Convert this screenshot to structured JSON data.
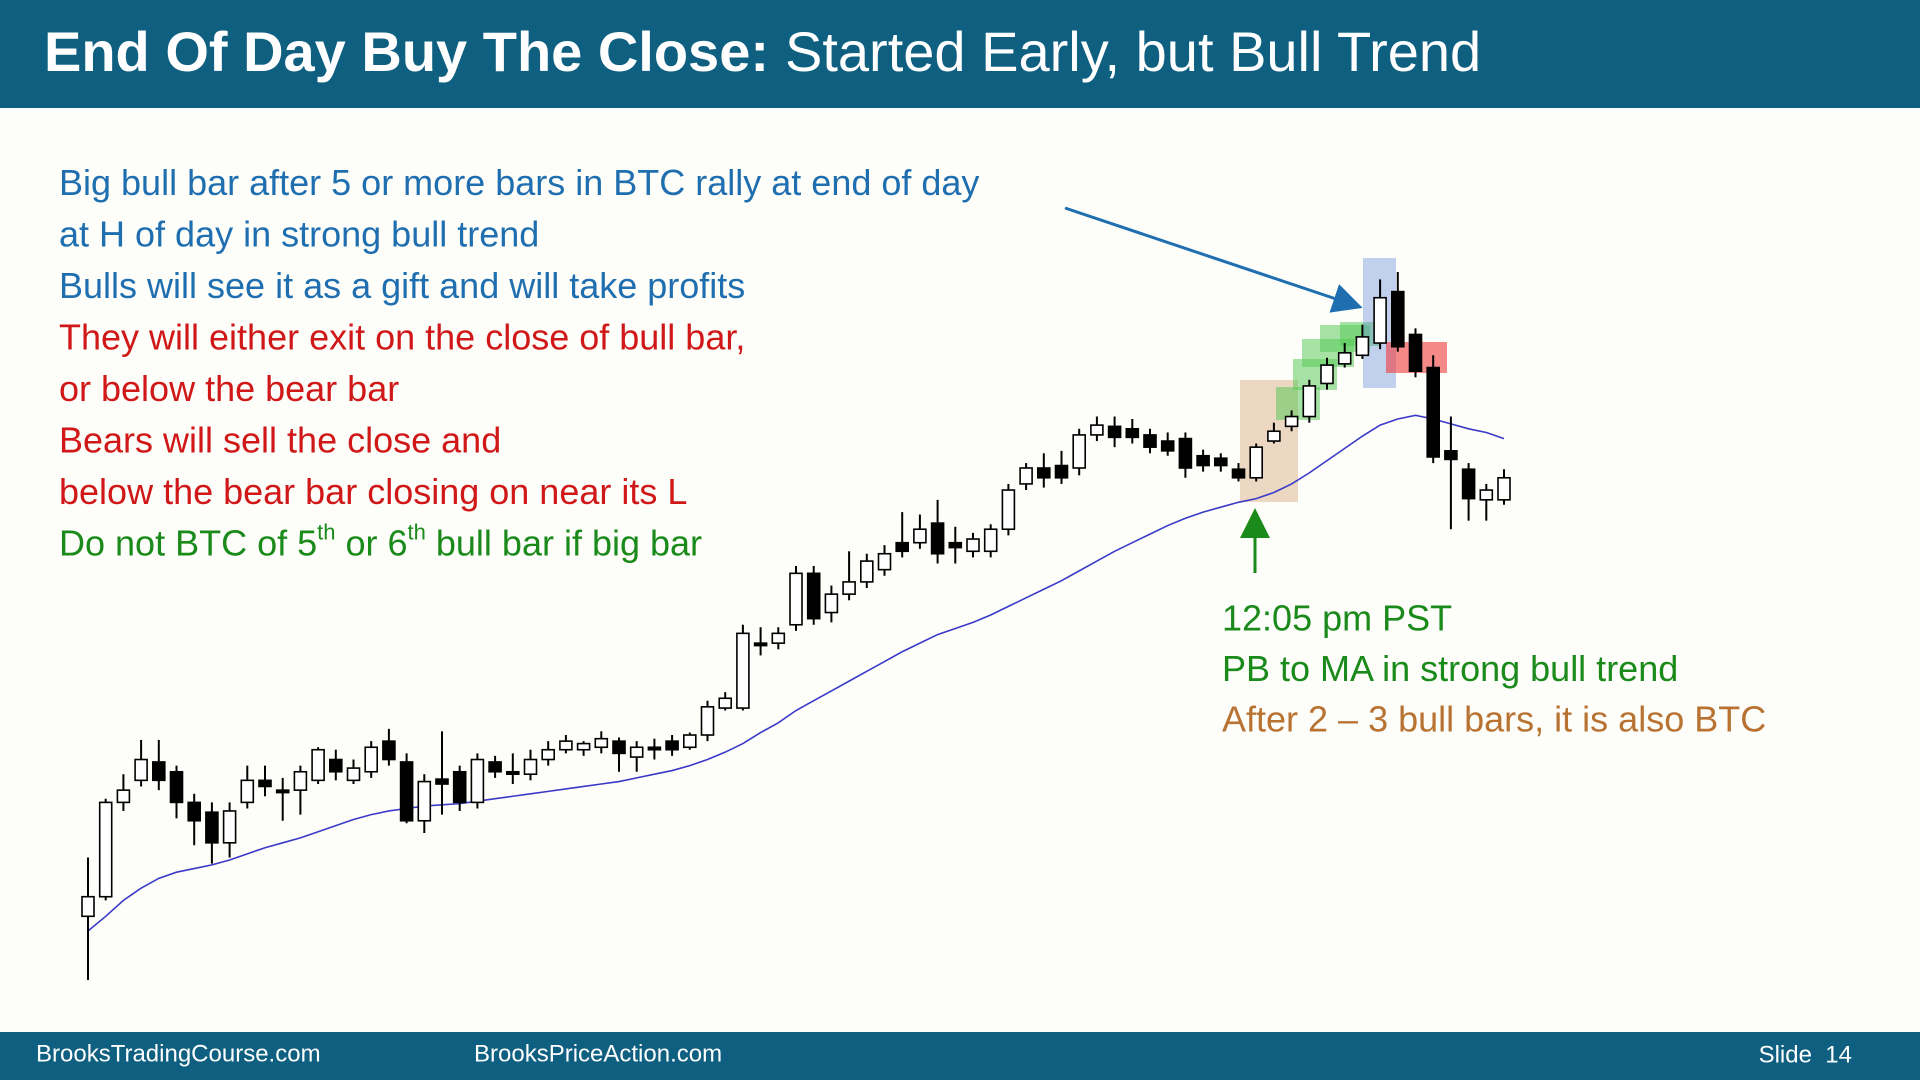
{
  "header": {
    "title_bold": "End Of Day Buy The Close:",
    "title_rest": "Started Early, but Bull Trend"
  },
  "notes": [
    {
      "color": "#1f6fb0",
      "parts": [
        {
          "text": "Big bull bar after 5 or more bars in BTC rally at end of day",
          "sup": false
        }
      ]
    },
    {
      "color": "#1f6fb0",
      "parts": [
        {
          "text": "at H of day in strong bull trend",
          "sup": false
        }
      ]
    },
    {
      "color": "#1f6fb0",
      "parts": [
        {
          "text": "Bulls will see it as a gift and will take profits",
          "sup": false
        }
      ]
    },
    {
      "color": "#d01818",
      "parts": [
        {
          "text": "They will either exit on the close of bull bar,",
          "sup": false
        }
      ]
    },
    {
      "color": "#d01818",
      "parts": [
        {
          "text": "or below the bear bar",
          "sup": false
        }
      ]
    },
    {
      "color": "#d01818",
      "parts": [
        {
          "text": "Bears will sell the close and",
          "sup": false
        }
      ]
    },
    {
      "color": "#d01818",
      "parts": [
        {
          "text": "below the bear bar closing on near its L",
          "sup": false
        }
      ]
    },
    {
      "color": "#1a8a1a",
      "parts": [
        {
          "text": "Do not BTC of 5",
          "sup": false
        },
        {
          "text": "th",
          "sup": true
        },
        {
          "text": " or 6",
          "sup": false
        },
        {
          "text": "th",
          "sup": true
        },
        {
          "text": " bull bar if big bar",
          "sup": false
        }
      ]
    }
  ],
  "callout": [
    {
      "text": "12:05 pm PST",
      "color": "#1a8a1a"
    },
    {
      "text": "PB to MA in strong bull trend",
      "color": "#1a8a1a"
    },
    {
      "text": "After 2 – 3 bull bars, it is also BTC",
      "color": "#b87333"
    }
  ],
  "chart_data": {
    "type": "candlestick",
    "bull_color": "#ffffff",
    "bear_color": "#000000",
    "open": [
      134,
      150,
      227,
      245,
      260,
      252,
      227,
      219,
      194,
      227,
      245,
      237,
      237,
      245,
      262,
      245,
      252,
      277,
      260,
      212,
      246,
      252,
      227,
      260,
      252,
      250,
      262,
      270,
      270,
      272,
      277,
      264,
      272,
      277,
      272,
      282,
      304,
      304,
      357,
      357,
      372,
      414,
      382,
      397,
      407,
      417,
      439,
      439,
      455,
      439,
      432,
      432,
      450,
      487,
      500,
      502,
      500,
      527,
      534,
      532,
      527,
      522,
      524,
      510,
      508,
      499,
      492,
      522,
      534,
      542,
      569,
      585,
      592,
      602,
      644,
      609,
      582,
      514,
      499,
      474,
      474
    ],
    "high": [
      182,
      230,
      250,
      278,
      278,
      257,
      234,
      227,
      227,
      257,
      257,
      247,
      257,
      272,
      270,
      262,
      277,
      287,
      267,
      250,
      285,
      257,
      267,
      265,
      267,
      270,
      277,
      282,
      277,
      285,
      280,
      277,
      279,
      282,
      284,
      310,
      317,
      372,
      370,
      370,
      420,
      420,
      404,
      432,
      430,
      437,
      464,
      462,
      474,
      452,
      447,
      454,
      487,
      504,
      512,
      514,
      532,
      542,
      542,
      540,
      532,
      529,
      529,
      515,
      512,
      504,
      520,
      537,
      547,
      572,
      590,
      602,
      617,
      654,
      660,
      614,
      592,
      542,
      504,
      487,
      499
    ],
    "low": [
      82,
      147,
      220,
      240,
      237,
      214,
      192,
      177,
      182,
      222,
      232,
      212,
      217,
      242,
      245,
      242,
      247,
      257,
      210,
      202,
      217,
      220,
      222,
      247,
      242,
      245,
      257,
      267,
      265,
      267,
      252,
      252,
      262,
      265,
      270,
      277,
      302,
      302,
      347,
      352,
      367,
      372,
      374,
      392,
      402,
      412,
      427,
      434,
      422,
      422,
      427,
      427,
      445,
      482,
      484,
      487,
      494,
      522,
      517,
      520,
      512,
      510,
      492,
      497,
      497,
      489,
      489,
      520,
      530,
      537,
      564,
      582,
      589,
      597,
      595,
      574,
      504,
      450,
      457,
      457,
      470
    ],
    "close": [
      150,
      227,
      237,
      262,
      245,
      227,
      212,
      194,
      220,
      245,
      240,
      235,
      252,
      270,
      252,
      255,
      272,
      262,
      212,
      244,
      242,
      227,
      262,
      252,
      250,
      262,
      270,
      277,
      275,
      279,
      267,
      272,
      270,
      270,
      282,
      305,
      312,
      365,
      355,
      365,
      414,
      377,
      397,
      407,
      424,
      430,
      432,
      450,
      430,
      435,
      442,
      450,
      482,
      500,
      492,
      492,
      527,
      535,
      525,
      525,
      517,
      514,
      500,
      502,
      502,
      492,
      517,
      530,
      542,
      567,
      584,
      594,
      607,
      639,
      599,
      579,
      509,
      507,
      475,
      482,
      492
    ],
    "ma": {
      "color": "#3a3ac8",
      "values": [
        122,
        134,
        147,
        157,
        165,
        170,
        173,
        176,
        180,
        185,
        190,
        194,
        198,
        203,
        208,
        213,
        217,
        220,
        222,
        224,
        225,
        226,
        228,
        230,
        232,
        234,
        236,
        238,
        240,
        242,
        244,
        247,
        250,
        253,
        257,
        262,
        268,
        275,
        284,
        292,
        302,
        310,
        318,
        326,
        334,
        342,
        350,
        357,
        364,
        369,
        374,
        380,
        387,
        394,
        401,
        408,
        416,
        424,
        432,
        439,
        446,
        453,
        459,
        464,
        468,
        472,
        475,
        480,
        487,
        496,
        506,
        516,
        526,
        535,
        540,
        543,
        540,
        536,
        532,
        529,
        524
      ]
    }
  },
  "footer": {
    "left": "BrooksTradingCourse.com",
    "middle": "BrooksPriceAction.com",
    "slide": "Slide  14"
  }
}
